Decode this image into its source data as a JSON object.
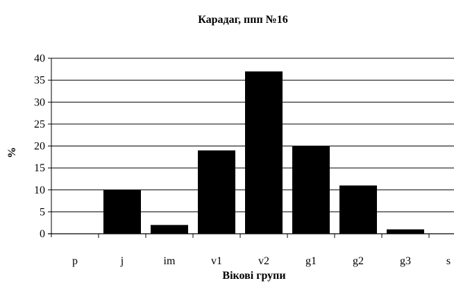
{
  "chart_data": {
    "type": "bar",
    "title": "Карадаг, ппп №16",
    "xlabel": "Вікові групи",
    "ylabel": "%",
    "categories": [
      "p",
      "j",
      "im",
      "v1",
      "v2",
      "g1",
      "g2",
      "g3",
      "s"
    ],
    "values": [
      0,
      10,
      2,
      19,
      37,
      20,
      11,
      1,
      0
    ],
    "ylim": [
      0,
      40
    ],
    "yticks": [
      "0",
      "5",
      "10",
      "15",
      "20",
      "25",
      "30",
      "35",
      "40"
    ],
    "grid": true,
    "legend": "none",
    "bar_color": "#000000"
  }
}
